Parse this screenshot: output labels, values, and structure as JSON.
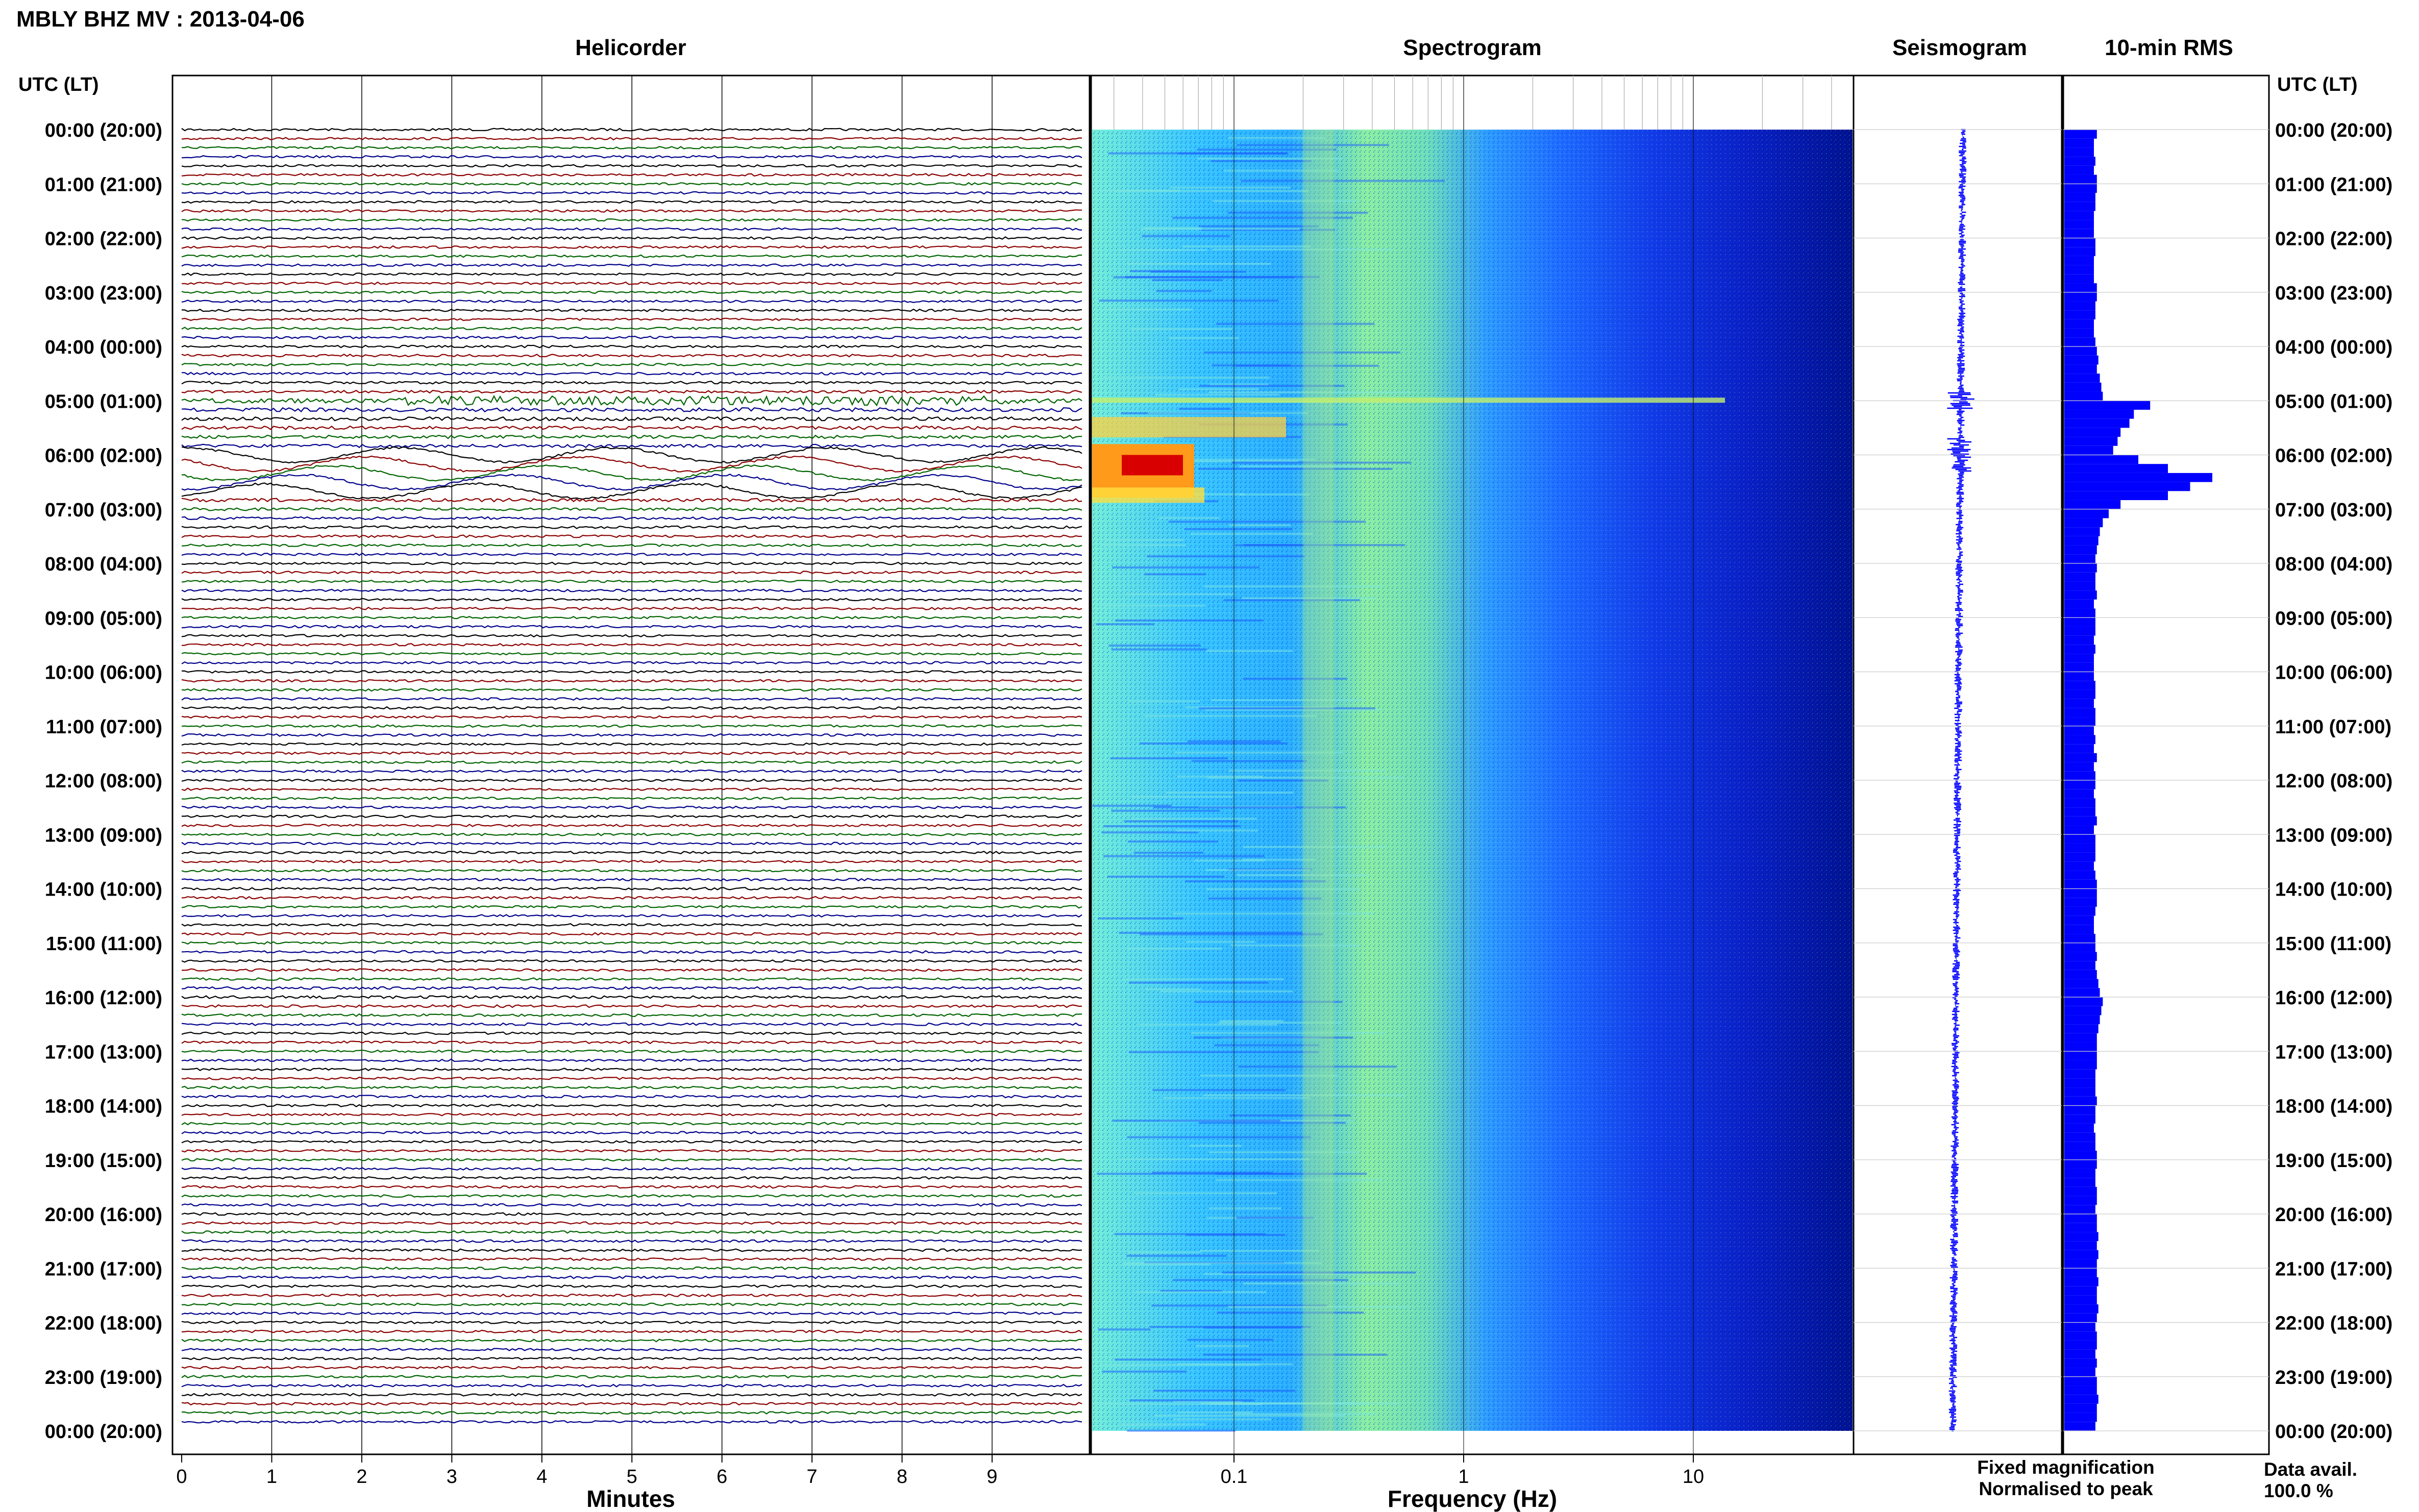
{
  "title": "MBLY BHZ MV : 2013-04-06",
  "panels": {
    "helicorder": "Helicorder",
    "spectrogram": "Spectrogram",
    "seismogram": "Seismogram",
    "rms": "10-min RMS"
  },
  "left_axis_header": "UTC (LT)",
  "right_axis_header": "UTC (LT)",
  "hour_labels": [
    "00:00 (20:00)",
    "01:00 (21:00)",
    "02:00 (22:00)",
    "03:00 (23:00)",
    "04:00 (00:00)",
    "05:00 (01:00)",
    "06:00 (02:00)",
    "07:00 (03:00)",
    "08:00 (04:00)",
    "09:00 (05:00)",
    "10:00 (06:00)",
    "11:00 (07:00)",
    "12:00 (08:00)",
    "13:00 (09:00)",
    "14:00 (10:00)",
    "15:00 (11:00)",
    "16:00 (12:00)",
    "17:00 (13:00)",
    "18:00 (14:00)",
    "19:00 (15:00)",
    "20:00 (16:00)",
    "21:00 (17:00)",
    "22:00 (18:00)",
    "23:00 (19:00)",
    "00:00 (20:00)"
  ],
  "minutes_ticks": [
    "0",
    "1",
    "2",
    "3",
    "4",
    "5",
    "6",
    "7",
    "8",
    "9"
  ],
  "minutes_label": "Minutes",
  "freq_ticks": [
    "0.1",
    "1",
    "10"
  ],
  "freq_label": "Frequency (Hz)",
  "legend": {
    "fixed": "Fixed magnification",
    "normalised": "Normalised to peak",
    "fixed_color": "#1a1aff",
    "normalised_color": "#ff1a1a"
  },
  "data_avail_label": "Data avail.",
  "data_avail_value": "100.0 %",
  "colors": {
    "trace_cycle": [
      "#000000",
      "#8b0000",
      "#006400",
      "#00008b"
    ],
    "rms_bar": "#0000ff",
    "seismogram": "#0000ff"
  },
  "chart_data": {
    "type": "heatmap",
    "x_range_minutes": [
      0,
      10
    ],
    "freq_range_hz": [
      0.02,
      50
    ],
    "freq_scale": "log",
    "time_range_hours": [
      0,
      24
    ],
    "helicorder_lines_per_hour": 6,
    "events": [
      {
        "time": "05:00",
        "description": "high-frequency transient"
      },
      {
        "time": "06:00",
        "description": "long-period energy 0.03-0.06 Hz"
      }
    ],
    "rms_10min_relative": [
      0.22,
      0.2,
      0.2,
      0.21,
      0.2,
      0.22,
      0.22,
      0.21,
      0.21,
      0.2,
      0.2,
      0.2,
      0.21,
      0.21,
      0.2,
      0.2,
      0.2,
      0.22,
      0.22,
      0.21,
      0.21,
      0.2,
      0.2,
      0.21,
      0.22,
      0.23,
      0.22,
      0.24,
      0.25,
      0.26,
      0.58,
      0.47,
      0.44,
      0.38,
      0.36,
      0.33,
      0.5,
      0.7,
      1.0,
      0.85,
      0.7,
      0.38,
      0.3,
      0.26,
      0.24,
      0.23,
      0.22,
      0.21,
      0.22,
      0.21,
      0.21,
      0.22,
      0.2,
      0.21,
      0.21,
      0.21,
      0.2,
      0.21,
      0.2,
      0.2,
      0.2,
      0.21,
      0.21,
      0.2,
      0.21,
      0.21,
      0.2,
      0.21,
      0.2,
      0.22,
      0.2,
      0.21,
      0.21,
      0.2,
      0.21,
      0.21,
      0.22,
      0.2,
      0.21,
      0.21,
      0.21,
      0.2,
      0.21,
      0.22,
      0.22,
      0.22,
      0.21,
      0.2,
      0.2,
      0.21,
      0.21,
      0.22,
      0.21,
      0.22,
      0.23,
      0.24,
      0.26,
      0.25,
      0.24,
      0.23,
      0.22,
      0.22,
      0.22,
      0.22,
      0.21,
      0.21,
      0.21,
      0.22,
      0.21,
      0.21,
      0.2,
      0.21,
      0.21,
      0.22,
      0.22,
      0.21,
      0.21,
      0.22,
      0.22,
      0.21,
      0.22,
      0.22,
      0.23,
      0.22,
      0.23,
      0.22,
      0.22,
      0.23,
      0.22,
      0.22,
      0.23,
      0.22,
      0.21,
      0.22,
      0.22,
      0.21,
      0.22,
      0.21,
      0.22,
      0.22,
      0.23,
      0.22,
      0.22,
      0.21
    ]
  }
}
